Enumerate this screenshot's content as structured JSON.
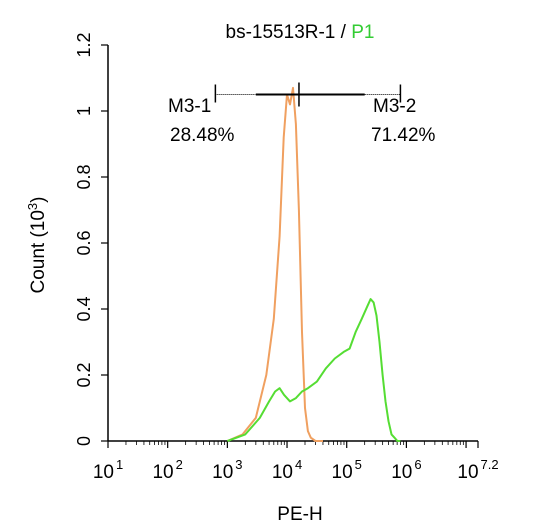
{
  "chart_data": {
    "type": "line",
    "title": {
      "sample": "bs-15513R-1",
      "separator": " / ",
      "gate": "P1"
    },
    "xlabel": "PE-H",
    "ylabel": "Count (10",
    "ylabel_sup": "3",
    "ylabel_close": ")",
    "x_scale": "log",
    "xlim": [
      10,
      15848932
    ],
    "ylim": [
      0,
      1.2
    ],
    "x_ticks": [
      {
        "value": 10,
        "base": "10",
        "exp": "1"
      },
      {
        "value": 100,
        "base": "10",
        "exp": "2"
      },
      {
        "value": 1000,
        "base": "10",
        "exp": "3"
      },
      {
        "value": 10000,
        "base": "10",
        "exp": "4"
      },
      {
        "value": 100000,
        "base": "10",
        "exp": "5"
      },
      {
        "value": 1000000,
        "base": "10",
        "exp": "6"
      },
      {
        "value": 15848932,
        "base": "10",
        "exp": "7.2"
      }
    ],
    "y_ticks": [
      "0",
      "0.2",
      "0.4",
      "0.6",
      "0.8",
      "1",
      "1.2"
    ],
    "y_tick_values": [
      0,
      0.2,
      0.4,
      0.6,
      0.8,
      1.0,
      1.2
    ],
    "grid": false,
    "series": [
      {
        "color": "#f0a060",
        "x": [
          1000,
          1800,
          3000,
          4500,
          6000,
          7500,
          8800,
          10000,
          11200,
          12600,
          14100,
          15800,
          17800,
          20000,
          22400,
          25000,
          30000,
          40000
        ],
        "y": [
          0,
          0.02,
          0.07,
          0.2,
          0.37,
          0.62,
          0.92,
          1.05,
          1.02,
          1.07,
          0.96,
          0.7,
          0.33,
          0.1,
          0.03,
          0.01,
          0,
          0
        ]
      },
      {
        "color": "#55dd33",
        "x": [
          1000,
          2000,
          3500,
          5000,
          6300,
          7500,
          8900,
          11200,
          14100,
          17800,
          22400,
          31600,
          44700,
          63100,
          89100,
          112000,
          141000,
          178000,
          224000,
          251000,
          282000,
          316000,
          355000,
          400000,
          447000,
          501000,
          562000,
          631000,
          708000,
          794000
        ],
        "y": [
          0,
          0.02,
          0.07,
          0.12,
          0.15,
          0.16,
          0.14,
          0.12,
          0.13,
          0.15,
          0.16,
          0.18,
          0.22,
          0.25,
          0.27,
          0.28,
          0.33,
          0.37,
          0.41,
          0.43,
          0.42,
          0.38,
          0.3,
          0.2,
          0.12,
          0.06,
          0.02,
          0.01,
          0,
          0
        ]
      }
    ],
    "markers": [
      {
        "label": "M3-1",
        "percent": "28.48%",
        "x_start": 630,
        "x_end": 15848
      },
      {
        "label": "M3-2",
        "percent": "71.42%",
        "x_start": 15848,
        "x_end": 794328
      }
    ],
    "marker_y": 1.05
  }
}
